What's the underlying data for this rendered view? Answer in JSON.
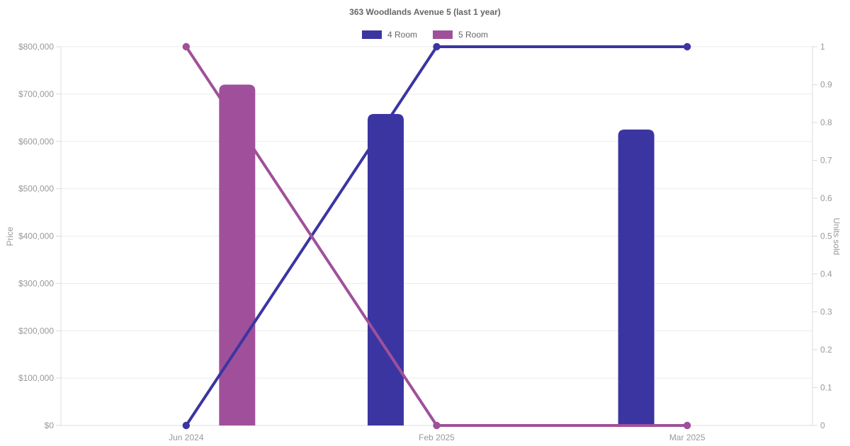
{
  "chart_data": {
    "type": "bar",
    "subtype": "combo-bar-line-dual-axis",
    "title": "363 Woodlands Avenue 5 (last 1 year)",
    "categories": [
      "Jun 2024",
      "Feb 2025",
      "Mar 2025"
    ],
    "series": [
      {
        "name": "4 Room",
        "render": "bar",
        "axis": "left",
        "color": "#3b35a2",
        "values": [
          null,
          658000,
          625000
        ]
      },
      {
        "name": "5 Room",
        "render": "bar",
        "axis": "left",
        "color": "#a0509a",
        "values": [
          720000,
          null,
          null
        ]
      },
      {
        "name": "4 Room",
        "render": "line",
        "axis": "right",
        "color": "#3b35a2",
        "values": [
          0,
          1,
          1
        ]
      },
      {
        "name": "5 Room",
        "render": "line",
        "axis": "right",
        "color": "#a0509a",
        "values": [
          1,
          0,
          0
        ]
      }
    ],
    "y_left": {
      "label": "Price",
      "min": 0,
      "max": 800000,
      "tick_step": 100000,
      "tick_labels": [
        "$0",
        "$100,000",
        "$200,000",
        "$300,000",
        "$400,000",
        "$500,000",
        "$600,000",
        "$700,000",
        "$800,000"
      ]
    },
    "y_right": {
      "label": "Units sold",
      "min": 0,
      "max": 1,
      "tick_step": 0.1,
      "tick_labels": [
        "0",
        "0.1",
        "0.2",
        "0.3",
        "0.4",
        "0.5",
        "0.6",
        "0.7",
        "0.8",
        "0.9",
        "1"
      ]
    },
    "legend": {
      "position": "top",
      "items": [
        {
          "label": "4 Room",
          "color": "#3b35a2"
        },
        {
          "label": "5 Room",
          "color": "#a0509a"
        }
      ]
    },
    "grid": "horizontal-only",
    "colors": {
      "gridline": "#ebebeb",
      "axis_border": "#dcdcdc",
      "tick_mark": "#d9d9d9",
      "tick_text": "#999999",
      "title_text": "#666666",
      "background": "#ffffff"
    }
  }
}
